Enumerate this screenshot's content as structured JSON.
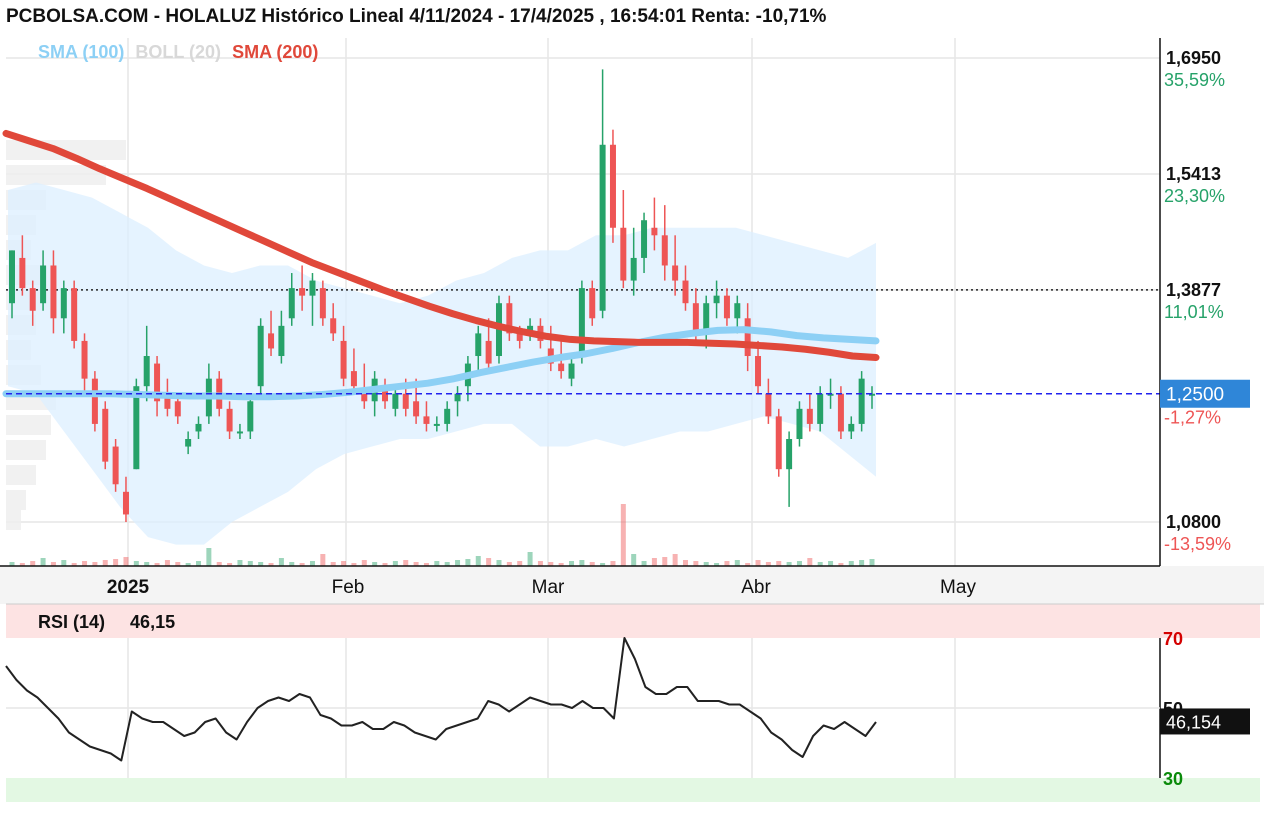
{
  "header": {
    "title": "PCBOLSA.COM - HOLALUZ Histórico Lineal 4/11/2024 - 17/4/2025 , 16:54:01 Renta: -10,71%"
  },
  "legend": {
    "sma100": "SMA (100)",
    "boll": "BOLL (20)",
    "sma200": "SMA (200)"
  },
  "colors": {
    "up": "#26a269",
    "down": "#ee5555",
    "sma100": "#8dd0f5",
    "sma200": "#e0483a",
    "boll_fill": "#dcefff",
    "current_price_box": "#2f86d8",
    "rsi_line": "#222222",
    "rsi_overbought_band": "#fde3e3",
    "rsi_oversold_band": "#e3f8e3"
  },
  "price_axis": {
    "labels": [
      {
        "price": "1,6950",
        "pct": "35,59%",
        "y": 1.695,
        "pct_color": "#26a269"
      },
      {
        "price": "1,5413",
        "pct": "23,30%",
        "y": 1.5413,
        "pct_color": "#26a269"
      },
      {
        "price": "1,3877",
        "pct": "11,01%",
        "y": 1.3877,
        "pct_color": "#26a269"
      },
      {
        "price": "1,0800",
        "pct": "-13,59%",
        "y": 1.08,
        "pct_color": "#ee5555"
      }
    ],
    "current": {
      "price": "1,2500",
      "pct": "-1,27%",
      "y": 1.25
    }
  },
  "x_axis": {
    "labels": [
      "2025",
      "Feb",
      "Mar",
      "Abr",
      "May"
    ]
  },
  "rsi": {
    "label": "RSI (14)",
    "value_text": "46,15",
    "current_box": "46,154",
    "levels": [
      "70",
      "50",
      "30"
    ]
  },
  "chart_data": {
    "type": "line",
    "title": "PCBOLSA.COM - HOLALUZ Histórico Lineal 4/11/2024 - 17/4/2025 , 16:54:01 Renta: -10,71%",
    "ylim": [
      1.03,
      1.73
    ],
    "reference_lines": {
      "dotted": 1.3877,
      "dashed_current": 1.25
    },
    "ohlc": {
      "note_series": "daily candles, mid-Dec 2024 to 17-Apr-2025",
      "candles": [
        [
          1.37,
          1.44,
          1.35,
          1.44
        ],
        [
          1.43,
          1.46,
          1.38,
          1.39
        ],
        [
          1.39,
          1.4,
          1.34,
          1.36
        ],
        [
          1.37,
          1.44,
          1.36,
          1.42
        ],
        [
          1.42,
          1.44,
          1.33,
          1.35
        ],
        [
          1.35,
          1.4,
          1.33,
          1.39
        ],
        [
          1.39,
          1.4,
          1.31,
          1.32
        ],
        [
          1.32,
          1.33,
          1.25,
          1.27
        ],
        [
          1.27,
          1.28,
          1.2,
          1.21
        ],
        [
          1.23,
          1.24,
          1.15,
          1.16
        ],
        [
          1.18,
          1.19,
          1.12,
          1.13
        ],
        [
          1.12,
          1.14,
          1.08,
          1.09
        ],
        [
          1.15,
          1.27,
          1.15,
          1.26
        ],
        [
          1.26,
          1.34,
          1.24,
          1.3
        ],
        [
          1.29,
          1.3,
          1.22,
          1.24
        ],
        [
          1.25,
          1.27,
          1.22,
          1.23
        ],
        [
          1.24,
          1.25,
          1.21,
          1.22
        ],
        [
          1.18,
          1.2,
          1.17,
          1.19
        ],
        [
          1.2,
          1.22,
          1.19,
          1.21
        ],
        [
          1.22,
          1.29,
          1.21,
          1.27
        ],
        [
          1.27,
          1.28,
          1.22,
          1.23
        ],
        [
          1.23,
          1.24,
          1.19,
          1.2
        ],
        [
          1.2,
          1.21,
          1.19,
          1.2
        ],
        [
          1.2,
          1.25,
          1.19,
          1.24
        ],
        [
          1.26,
          1.35,
          1.25,
          1.34
        ],
        [
          1.33,
          1.36,
          1.3,
          1.31
        ],
        [
          1.3,
          1.36,
          1.29,
          1.34
        ],
        [
          1.35,
          1.41,
          1.34,
          1.39
        ],
        [
          1.39,
          1.42,
          1.36,
          1.38
        ],
        [
          1.38,
          1.41,
          1.34,
          1.4
        ],
        [
          1.39,
          1.4,
          1.34,
          1.35
        ],
        [
          1.35,
          1.37,
          1.32,
          1.33
        ],
        [
          1.32,
          1.34,
          1.26,
          1.27
        ],
        [
          1.28,
          1.31,
          1.25,
          1.26
        ],
        [
          1.25,
          1.29,
          1.23,
          1.24
        ],
        [
          1.24,
          1.28,
          1.22,
          1.27
        ],
        [
          1.26,
          1.27,
          1.23,
          1.24
        ],
        [
          1.23,
          1.26,
          1.22,
          1.25
        ],
        [
          1.25,
          1.27,
          1.22,
          1.23
        ],
        [
          1.24,
          1.27,
          1.21,
          1.22
        ],
        [
          1.22,
          1.24,
          1.2,
          1.21
        ],
        [
          1.21,
          1.22,
          1.2,
          1.21
        ],
        [
          1.21,
          1.24,
          1.2,
          1.23
        ],
        [
          1.24,
          1.26,
          1.22,
          1.25
        ],
        [
          1.26,
          1.3,
          1.24,
          1.29
        ],
        [
          1.3,
          1.34,
          1.28,
          1.33
        ],
        [
          1.32,
          1.35,
          1.28,
          1.29
        ],
        [
          1.3,
          1.38,
          1.29,
          1.37
        ],
        [
          1.37,
          1.38,
          1.32,
          1.33
        ],
        [
          1.33,
          1.34,
          1.31,
          1.32
        ],
        [
          1.33,
          1.35,
          1.32,
          1.34
        ],
        [
          1.34,
          1.35,
          1.31,
          1.32
        ],
        [
          1.31,
          1.34,
          1.28,
          1.29
        ],
        [
          1.29,
          1.32,
          1.27,
          1.28
        ],
        [
          1.27,
          1.3,
          1.26,
          1.29
        ],
        [
          1.3,
          1.4,
          1.29,
          1.39
        ],
        [
          1.39,
          1.4,
          1.34,
          1.35
        ],
        [
          1.36,
          1.68,
          1.35,
          1.58
        ],
        [
          1.58,
          1.6,
          1.45,
          1.47
        ],
        [
          1.47,
          1.52,
          1.39,
          1.4
        ],
        [
          1.4,
          1.47,
          1.38,
          1.43
        ],
        [
          1.43,
          1.49,
          1.41,
          1.48
        ],
        [
          1.47,
          1.51,
          1.44,
          1.46
        ],
        [
          1.46,
          1.5,
          1.4,
          1.42
        ],
        [
          1.42,
          1.46,
          1.38,
          1.4
        ],
        [
          1.4,
          1.42,
          1.36,
          1.37
        ],
        [
          1.37,
          1.39,
          1.32,
          1.33
        ],
        [
          1.33,
          1.38,
          1.31,
          1.37
        ],
        [
          1.37,
          1.4,
          1.35,
          1.38
        ],
        [
          1.38,
          1.39,
          1.34,
          1.35
        ],
        [
          1.35,
          1.38,
          1.33,
          1.37
        ],
        [
          1.35,
          1.37,
          1.28,
          1.3
        ],
        [
          1.3,
          1.32,
          1.25,
          1.26
        ],
        [
          1.25,
          1.27,
          1.21,
          1.22
        ],
        [
          1.22,
          1.23,
          1.14,
          1.15
        ],
        [
          1.15,
          1.2,
          1.1,
          1.19
        ],
        [
          1.19,
          1.24,
          1.18,
          1.23
        ],
        [
          1.23,
          1.25,
          1.2,
          1.21
        ],
        [
          1.21,
          1.26,
          1.2,
          1.25
        ],
        [
          1.25,
          1.27,
          1.23,
          1.25
        ],
        [
          1.25,
          1.26,
          1.19,
          1.2
        ],
        [
          1.2,
          1.22,
          1.19,
          1.21
        ],
        [
          1.21,
          1.28,
          1.2,
          1.27
        ],
        [
          1.25,
          1.26,
          1.23,
          1.25
        ]
      ]
    },
    "series": [
      {
        "name": "SMA (200)",
        "values": [
          1.595,
          1.585,
          1.575,
          1.562,
          1.548,
          1.535,
          1.522,
          1.508,
          1.494,
          1.48,
          1.466,
          1.452,
          1.438,
          1.424,
          1.412,
          1.4,
          1.388,
          1.377,
          1.366,
          1.356,
          1.347,
          1.339,
          1.332,
          1.326,
          1.322,
          1.32,
          1.319,
          1.318,
          1.318,
          1.318,
          1.317,
          1.316,
          1.314,
          1.312,
          1.309,
          1.305,
          1.3,
          1.298
        ]
      },
      {
        "name": "SMA (100)",
        "values": [
          1.25,
          1.25,
          1.25,
          1.25,
          1.25,
          1.249,
          1.248,
          1.247,
          1.247,
          1.246,
          1.246,
          1.247,
          1.249,
          1.252,
          1.256,
          1.26,
          1.264,
          1.27,
          1.278,
          1.285,
          1.292,
          1.298,
          1.303,
          1.31,
          1.318,
          1.325,
          1.33,
          1.334,
          1.335,
          1.332,
          1.327,
          1.324,
          1.322,
          1.32
        ]
      }
    ],
    "bollinger_upper": [
      1.52,
      1.53,
      1.52,
      1.51,
      1.49,
      1.47,
      1.44,
      1.42,
      1.41,
      1.42,
      1.42,
      1.4,
      1.39,
      1.38,
      1.37,
      1.38,
      1.4,
      1.41,
      1.43,
      1.44,
      1.44,
      1.46,
      1.46,
      1.47,
      1.47,
      1.47,
      1.47,
      1.46,
      1.45,
      1.44,
      1.43,
      1.45
    ],
    "bollinger_lower": [
      1.26,
      1.25,
      1.2,
      1.15,
      1.1,
      1.06,
      1.05,
      1.05,
      1.08,
      1.1,
      1.12,
      1.15,
      1.17,
      1.18,
      1.19,
      1.19,
      1.2,
      1.21,
      1.21,
      1.18,
      1.18,
      1.19,
      1.18,
      1.19,
      1.2,
      1.2,
      1.21,
      1.22,
      1.21,
      1.2,
      1.17,
      1.14
    ],
    "rsi_values": [
      62,
      58,
      55,
      53,
      50,
      47,
      43,
      41,
      39,
      38,
      37,
      35,
      49,
      47,
      46,
      46,
      44,
      42,
      43,
      46,
      47,
      43,
      41,
      46,
      50,
      52,
      53,
      52,
      54,
      53,
      48,
      47,
      45,
      45,
      46,
      44,
      44,
      46,
      45,
      43,
      42,
      41,
      44,
      45,
      46,
      47,
      52,
      51,
      49,
      51,
      53,
      52,
      51,
      51,
      50,
      52,
      50,
      50,
      47,
      70,
      64,
      56,
      54,
      54,
      56,
      56,
      52,
      52,
      52,
      51,
      51,
      49,
      47,
      43,
      41,
      38,
      36,
      42,
      45,
      44,
      46,
      44,
      42,
      46
    ]
  }
}
